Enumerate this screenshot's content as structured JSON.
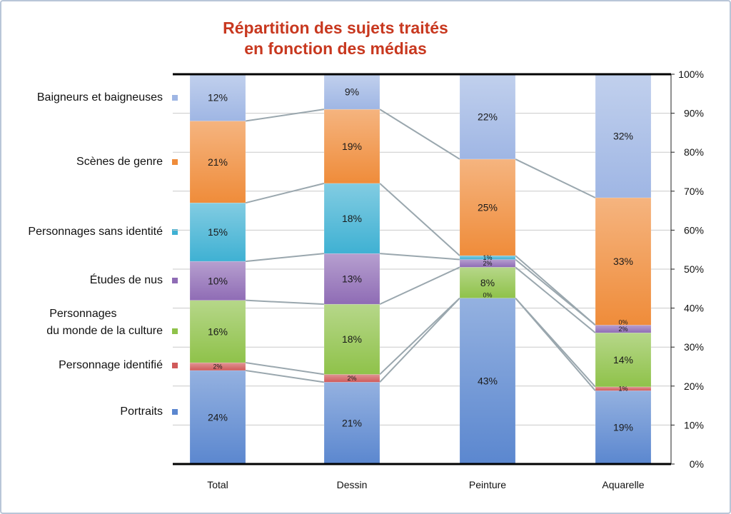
{
  "chart_data": {
    "type": "bar",
    "stacked": true,
    "percent": true,
    "title": [
      "Répartition des sujets traités",
      "en fonction des médias"
    ],
    "categories": [
      "Total",
      "Dessin",
      "Peinture",
      "Aquarelle"
    ],
    "yticks": [
      "0%",
      "10%",
      "20%",
      "30%",
      "40%",
      "50%",
      "60%",
      "70%",
      "80%",
      "90%",
      "100%"
    ],
    "ylim": [
      0,
      100
    ],
    "grid": true,
    "legend_placement": "left",
    "series_lines": true,
    "series": [
      {
        "name": "Portraits",
        "color": "#5b87cf",
        "values": [
          24,
          21,
          43,
          19
        ],
        "labels": [
          "24%",
          "21%",
          "43%",
          "19%"
        ]
      },
      {
        "name": "Personnage identifié",
        "color": "#d05a5a",
        "values": [
          2,
          2,
          0,
          1
        ],
        "labels": [
          "2%",
          "2%",
          "0%",
          "1%"
        ]
      },
      {
        "name": "Personnages du monde de la culture",
        "legend_lines": [
          "Personnages",
          "du monde de la culture"
        ],
        "color": "#8fc24a",
        "values": [
          16,
          18,
          8,
          14
        ],
        "labels": [
          "16%",
          "18%",
          "8%",
          "14%"
        ]
      },
      {
        "name": "Études de nus",
        "color": "#8f6cb5",
        "values": [
          10,
          13,
          2,
          2
        ],
        "labels": [
          "10%",
          "13%",
          "2%",
          "2%"
        ]
      },
      {
        "name": "Personnages sans identité",
        "color": "#3fb1d3",
        "values": [
          15,
          18,
          1,
          0
        ],
        "labels": [
          "15%",
          "18%",
          "1%",
          "0%"
        ]
      },
      {
        "name": "Scènes de genre",
        "color": "#ef8c3a",
        "values": [
          21,
          19,
          25,
          33
        ],
        "labels": [
          "21%",
          "19%",
          "25%",
          "33%"
        ]
      },
      {
        "name": "Baigneurs et baigneuses",
        "color": "#9fb6e4",
        "values": [
          12,
          9,
          22,
          32
        ],
        "labels": [
          "12%",
          "9%",
          "22%",
          "32%"
        ]
      }
    ]
  }
}
